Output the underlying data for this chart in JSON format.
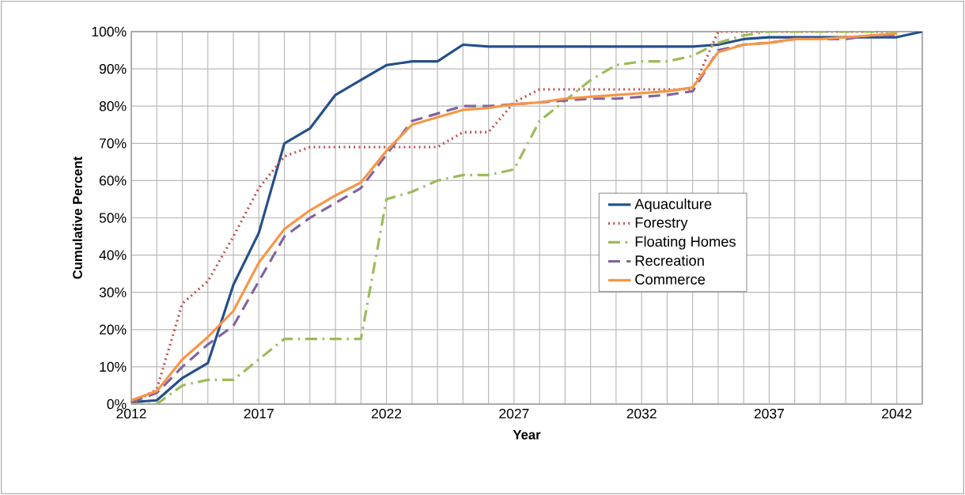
{
  "chart_data": {
    "type": "line",
    "xlabel": "Year",
    "ylabel": "Cumulative Percent",
    "x": [
      2012,
      2013,
      2014,
      2015,
      2016,
      2017,
      2018,
      2019,
      2020,
      2021,
      2022,
      2023,
      2024,
      2025,
      2026,
      2027,
      2028,
      2029,
      2030,
      2031,
      2032,
      2033,
      2034,
      2035,
      2036,
      2037,
      2038,
      2039,
      2040,
      2041,
      2042,
      2043
    ],
    "series": [
      {
        "name": "Aquaculture",
        "color": "#24508a",
        "line_style": "solid",
        "values": [
          0.5,
          1,
          7,
          11,
          32,
          46,
          70,
          74,
          83,
          87,
          91,
          92,
          92,
          96.5,
          96,
          96,
          96,
          96,
          96,
          96,
          96,
          96,
          96,
          96.5,
          98,
          98.5,
          98.5,
          98.5,
          98.5,
          98.5,
          98.5,
          100
        ]
      },
      {
        "name": "Forestry",
        "color": "#c0504d",
        "line_style": "dotted",
        "values": [
          0,
          4,
          27,
          33,
          45,
          58,
          66.5,
          69,
          69,
          69,
          69,
          69,
          69,
          73,
          73,
          81,
          84.5,
          84.5,
          84.5,
          84.5,
          84.5,
          84.5,
          84.5,
          100,
          100,
          100,
          100,
          100,
          100,
          100,
          100,
          null
        ]
      },
      {
        "name": "Floating Homes",
        "color": "#9bbb59",
        "line_style": "dashdot",
        "values": [
          0,
          0,
          5,
          6.5,
          6.5,
          12,
          17.5,
          17.5,
          17.5,
          17.5,
          55,
          57,
          60,
          61.5,
          61.5,
          63,
          76,
          81.5,
          87,
          91,
          92,
          92,
          93.5,
          97,
          99,
          100,
          100,
          100,
          100,
          100,
          100,
          null
        ]
      },
      {
        "name": "Recreation",
        "color": "#8064a2",
        "line_style": "dashed",
        "values": [
          0.5,
          3,
          10,
          16,
          21,
          33,
          45,
          50,
          54,
          58,
          67,
          76,
          78,
          80,
          80,
          80.5,
          81,
          81.5,
          82,
          82,
          82.5,
          83,
          84,
          95,
          96.5,
          97,
          98,
          98,
          98,
          99,
          99,
          null
        ]
      },
      {
        "name": "Commerce",
        "color": "#f79646",
        "line_style": "solid",
        "values": [
          1,
          3.5,
          12,
          18,
          25,
          38,
          47,
          52,
          56,
          59.5,
          68,
          75,
          77,
          79,
          79.5,
          80.5,
          81,
          82,
          82.5,
          83,
          83.5,
          84,
          85,
          94.5,
          96.5,
          97,
          98,
          98,
          98.5,
          99,
          99.5,
          null
        ]
      }
    ],
    "xlim": [
      2012,
      2043
    ],
    "ylim": [
      0,
      100
    ],
    "xticks": [
      2012,
      {
        "value": 2013,
        "label": null
      },
      {
        "value": 2014,
        "label": null
      },
      {
        "value": 2015,
        "label": null
      },
      {
        "value": 2016,
        "label": null
      },
      2017,
      {
        "value": 2018,
        "label": null
      },
      {
        "value": 2019,
        "label": null
      },
      {
        "value": 2020,
        "label": null
      },
      {
        "value": 2021,
        "label": null
      },
      2022,
      {
        "value": 2023,
        "label": null
      },
      {
        "value": 2024,
        "label": null
      },
      {
        "value": 2025,
        "label": null
      },
      {
        "value": 2026,
        "label": null
      },
      2027,
      {
        "value": 2028,
        "label": null
      },
      {
        "value": 2029,
        "label": null
      },
      {
        "value": 2030,
        "label": null
      },
      {
        "value": 2031,
        "label": null
      },
      2032,
      {
        "value": 2033,
        "label": null
      },
      {
        "value": 2034,
        "label": null
      },
      {
        "value": 2035,
        "label": null
      },
      {
        "value": 2036,
        "label": null
      },
      2037,
      {
        "value": 2038,
        "label": null
      },
      {
        "value": 2039,
        "label": null
      },
      {
        "value": 2040,
        "label": null
      },
      {
        "value": 2041,
        "label": null
      },
      2042,
      {
        "value": 2043,
        "label": null
      }
    ],
    "yticks": [
      {
        "value": 0,
        "label": "0%"
      },
      {
        "value": 10,
        "label": "10%"
      },
      {
        "value": 20,
        "label": "20%"
      },
      {
        "value": 30,
        "label": "30%"
      },
      {
        "value": 40,
        "label": "40%"
      },
      {
        "value": 50,
        "label": "50%"
      },
      {
        "value": 60,
        "label": "60%"
      },
      {
        "value": 70,
        "label": "70%"
      },
      {
        "value": 80,
        "label": "80%"
      },
      {
        "value": 90,
        "label": "90%"
      },
      {
        "value": 100,
        "label": "100%"
      }
    ],
    "grid": true,
    "legend": "right",
    "marker": "none"
  }
}
